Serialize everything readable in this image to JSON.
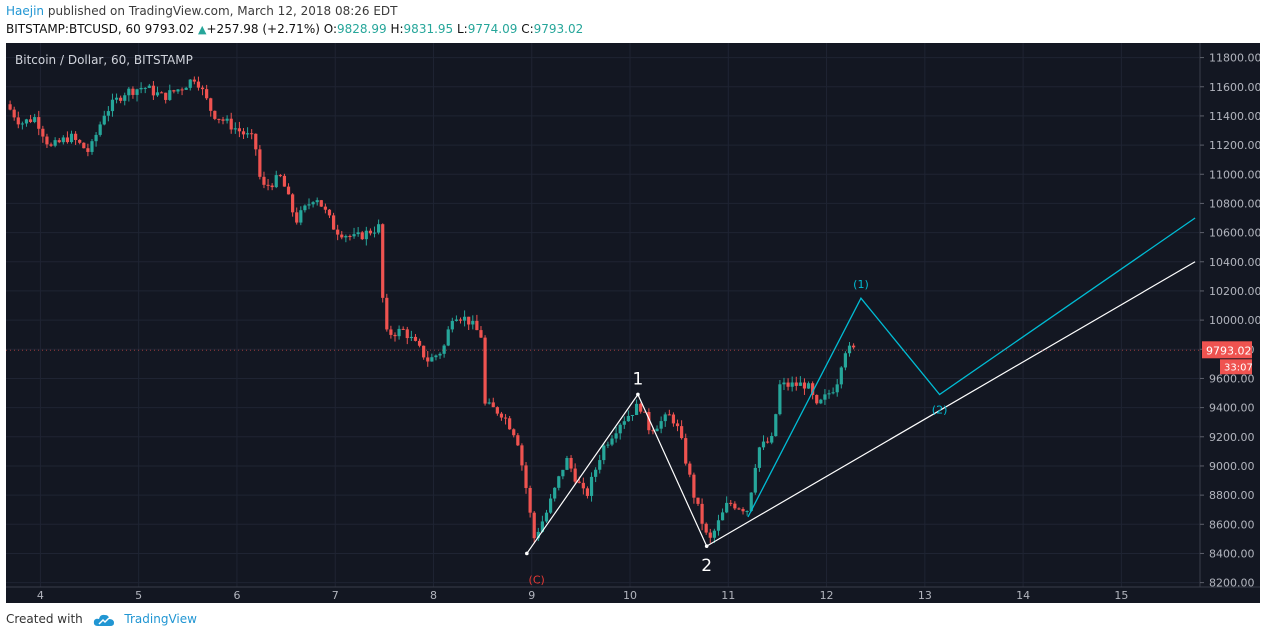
{
  "header": {
    "user": "Haejin",
    "published_text": "published on TradingView.com, March 12, 2018 08:26 EDT",
    "symbol_line": "BITSTAMP:BTCUSD, 60",
    "last_price": "9793.02",
    "change": "+257.98 (+2.71%)",
    "open_label": "O:",
    "open": "9828.99",
    "high_label": "H:",
    "high": "9831.95",
    "low_label": "L:",
    "low": "9774.09",
    "close_label": "C:",
    "close": "9793.02"
  },
  "footer": {
    "created_with": "Created with",
    "brand": "TradingView"
  },
  "colors": {
    "background": "#131722",
    "up": "#26a69a",
    "down": "#ef5350",
    "wave_white": "#ffffff",
    "wave_cyan": "#00bcd4",
    "label_red": "#e53935",
    "price_tag": "#ef5350"
  },
  "chart_data": {
    "type": "candlestick",
    "title": "Bitcoin / Dollar, 60, BITSTAMP",
    "x_ticks": [
      "4",
      "5",
      "6",
      "7",
      "8",
      "9",
      "10",
      "11",
      "12",
      "13",
      "14",
      "15"
    ],
    "y_ticks": [
      "8200.00",
      "8400.00",
      "8600.00",
      "8800.00",
      "9000.00",
      "9200.00",
      "9400.00",
      "9600.00",
      "9800.00",
      "10000.00",
      "10200.00",
      "10400.00",
      "10600.00",
      "10800.00",
      "11000.00",
      "11200.00",
      "11400.00",
      "11600.00",
      "11800.00"
    ],
    "y_range": [
      8170,
      11900
    ],
    "x_range": [
      3.65,
      15.8
    ],
    "price_path": [
      [
        3.65,
        11480
      ],
      [
        3.8,
        11350
      ],
      [
        3.95,
        11390
      ],
      [
        4.1,
        11180
      ],
      [
        4.3,
        11260
      ],
      [
        4.5,
        11150
      ],
      [
        4.65,
        11420
      ],
      [
        4.85,
        11560
      ],
      [
        5.05,
        11600
      ],
      [
        5.25,
        11530
      ],
      [
        5.45,
        11600
      ],
      [
        5.58,
        11670
      ],
      [
        5.75,
        11420
      ],
      [
        5.95,
        11330
      ],
      [
        6.18,
        11230
      ],
      [
        6.25,
        10900
      ],
      [
        6.45,
        10980
      ],
      [
        6.6,
        10680
      ],
      [
        6.8,
        10860
      ],
      [
        7.0,
        10620
      ],
      [
        7.2,
        10560
      ],
      [
        7.45,
        10640
      ],
      [
        7.5,
        9900
      ],
      [
        7.7,
        9930
      ],
      [
        7.95,
        9720
      ],
      [
        8.1,
        9800
      ],
      [
        8.2,
        10050
      ],
      [
        8.35,
        10000
      ],
      [
        8.5,
        9880
      ],
      [
        8.52,
        9420
      ],
      [
        8.7,
        9360
      ],
      [
        8.85,
        9200
      ],
      [
        8.95,
        8820
      ],
      [
        9.02,
        8500
      ],
      [
        9.15,
        8680
      ],
      [
        9.35,
        9050
      ],
      [
        9.55,
        8780
      ],
      [
        9.72,
        9120
      ],
      [
        9.9,
        9300
      ],
      [
        10.1,
        9420
      ],
      [
        10.2,
        9250
      ],
      [
        10.42,
        9350
      ],
      [
        10.5,
        9230
      ],
      [
        10.65,
        8800
      ],
      [
        10.8,
        8470
      ],
      [
        11.0,
        8750
      ],
      [
        11.2,
        8700
      ],
      [
        11.3,
        9120
      ],
      [
        11.45,
        9180
      ],
      [
        11.52,
        9550
      ],
      [
        11.8,
        9560
      ],
      [
        11.9,
        9400
      ],
      [
        12.1,
        9560
      ],
      [
        12.18,
        9800
      ],
      [
        12.3,
        9793
      ]
    ],
    "wave_count_white": {
      "points": [
        [
          8.95,
          8400
        ],
        [
          10.08,
          9490
        ],
        [
          10.78,
          8450
        ]
      ],
      "trendline": [
        [
          10.78,
          8450
        ],
        [
          15.75,
          10400
        ]
      ],
      "labels": [
        "1",
        "2"
      ]
    },
    "wave_count_cyan": {
      "points": [
        [
          11.2,
          8650
        ],
        [
          12.35,
          10150
        ],
        [
          13.15,
          9490
        ],
        [
          15.75,
          10700
        ]
      ],
      "labels": [
        "(1)",
        "(2)"
      ]
    },
    "annotation_c": "(C)",
    "last_price_tag": "9793.02",
    "countdown_tag": "33:07"
  }
}
